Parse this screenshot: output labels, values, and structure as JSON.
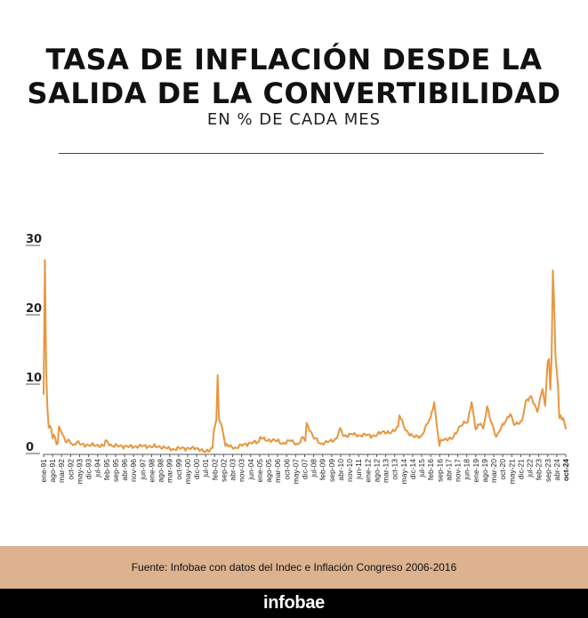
{
  "header": {
    "title_line1": "TASA DE INFLACIÓN DESDE LA",
    "title_line2": "SALIDA DE LA CONVERTIBILIDAD",
    "subtitle": "EN % DE CADA MES"
  },
  "colors": {
    "line": "#e8963f",
    "axis": "#555555",
    "footer_bg": "#dcb28f",
    "brand_bg": "#000000"
  },
  "chart_data": {
    "type": "line",
    "title": "TASA DE INFLACIÓN DESDE LA SALIDA DE LA CONVERTIBILIDAD",
    "subtitle": "EN % DE CADA MES",
    "xlabel": "",
    "ylabel": "",
    "ylim": [
      0,
      30
    ],
    "y_ticks": [
      0,
      10,
      20,
      30
    ],
    "grid": false,
    "x_tick_labels": [
      "ene-91",
      "ago-91",
      "mar-92",
      "oct-92",
      "may-93",
      "dic-93",
      "jul-94",
      "feb-95",
      "sep-95",
      "abr-96",
      "nov-96",
      "jun-97",
      "ene-98",
      "ago-98",
      "mar-99",
      "oct-99",
      "may-00",
      "dic-00",
      "jul-01",
      "feb-02",
      "sep-02",
      "abr-03",
      "nov-03",
      "jun-04",
      "ene-05",
      "ago-05",
      "mar-06",
      "oct-06",
      "may-07",
      "dic-07",
      "jul-08",
      "feb-09",
      "sep-09",
      "abr-10",
      "nov-10",
      "jun-11",
      "ene-12",
      "ago-12",
      "mar-13",
      "oct-13",
      "may-14",
      "dic-14",
      "jul-15",
      "feb-16",
      "sep-16",
      "abr-17",
      "nov-17",
      "jun-18",
      "ene-19",
      "ago-19",
      "mar-20",
      "oct-20",
      "may-21",
      "dic-21",
      "jul-22",
      "feb-23",
      "sep-23",
      "abr-24",
      "oct-24"
    ],
    "x_start": "1991-01",
    "x_end": "2024-10",
    "series": [
      {
        "name": "",
        "points": [
          [
            "1991-01",
            7.7
          ],
          [
            "1991-02",
            27.0
          ],
          [
            "1991-03",
            11.0
          ],
          [
            "1991-04",
            5.5
          ],
          [
            "1991-05",
            2.8
          ],
          [
            "1991-06",
            3.1
          ],
          [
            "1991-07",
            2.6
          ],
          [
            "1991-08",
            1.3
          ],
          [
            "1991-09",
            1.8
          ],
          [
            "1991-10",
            1.4
          ],
          [
            "1991-11",
            0.4
          ],
          [
            "1991-12",
            0.6
          ],
          [
            "1992-01",
            3.0
          ],
          [
            "1992-03",
            2.1
          ],
          [
            "1992-06",
            0.8
          ],
          [
            "1992-09",
            1.0
          ],
          [
            "1992-12",
            0.3
          ],
          [
            "1993-03",
            0.8
          ],
          [
            "1993-06",
            0.4
          ],
          [
            "1993-12",
            0.3
          ],
          [
            "1994-06",
            0.3
          ],
          [
            "1994-12",
            0.2
          ],
          [
            "1995-01",
            1.0
          ],
          [
            "1995-06",
            0.2
          ],
          [
            "1995-12",
            0.2
          ],
          [
            "1996-06",
            0.1
          ],
          [
            "1996-12",
            0.1
          ],
          [
            "1997-06",
            0.2
          ],
          [
            "1997-12",
            0.1
          ],
          [
            "1998-06",
            0.1
          ],
          [
            "1998-12",
            -0.1
          ],
          [
            "1999-06",
            -0.3
          ],
          [
            "1999-12",
            -0.1
          ],
          [
            "2000-06",
            -0.2
          ],
          [
            "2000-12",
            -0.1
          ],
          [
            "2001-06",
            -0.7
          ],
          [
            "2001-12",
            -0.1
          ],
          [
            "2002-01",
            2.3
          ],
          [
            "2002-02",
            3.1
          ],
          [
            "2002-03",
            4.0
          ],
          [
            "2002-04",
            10.4
          ],
          [
            "2002-05",
            4.0
          ],
          [
            "2002-06",
            3.6
          ],
          [
            "2002-07",
            3.2
          ],
          [
            "2002-08",
            2.3
          ],
          [
            "2002-09",
            1.3
          ],
          [
            "2002-10",
            0.2
          ],
          [
            "2002-11",
            0.5
          ],
          [
            "2002-12",
            0.2
          ],
          [
            "2003-06",
            -0.1
          ],
          [
            "2003-12",
            0.4
          ],
          [
            "2004-06",
            0.6
          ],
          [
            "2004-12",
            0.8
          ],
          [
            "2005-01",
            1.5
          ],
          [
            "2005-06",
            0.9
          ],
          [
            "2005-12",
            1.1
          ],
          [
            "2006-06",
            0.5
          ],
          [
            "2006-12",
            1.0
          ],
          [
            "2007-06",
            0.4
          ],
          [
            "2007-10",
            1.5
          ],
          [
            "2007-12",
            0.9
          ],
          [
            "2008-01",
            3.5
          ],
          [
            "2008-06",
            1.5
          ],
          [
            "2008-12",
            0.5
          ],
          [
            "2009-06",
            0.8
          ],
          [
            "2009-12",
            1.2
          ],
          [
            "2010-03",
            2.8
          ],
          [
            "2010-06",
            1.6
          ],
          [
            "2010-12",
            1.9
          ],
          [
            "2011-06",
            1.7
          ],
          [
            "2011-12",
            1.8
          ],
          [
            "2012-06",
            1.6
          ],
          [
            "2012-12",
            2.3
          ],
          [
            "2013-06",
            2.0
          ],
          [
            "2013-12",
            3.0
          ],
          [
            "2014-01",
            4.6
          ],
          [
            "2014-06",
            2.4
          ],
          [
            "2014-12",
            1.5
          ],
          [
            "2015-06",
            1.6
          ],
          [
            "2015-12",
            3.9
          ],
          [
            "2016-01",
            4.2
          ],
          [
            "2016-04",
            6.5
          ],
          [
            "2016-06",
            3.1
          ],
          [
            "2016-08",
            0.2
          ],
          [
            "2016-09",
            1.1
          ],
          [
            "2016-12",
            1.2
          ],
          [
            "2017-06",
            1.2
          ],
          [
            "2017-12",
            3.1
          ],
          [
            "2018-06",
            3.7
          ],
          [
            "2018-09",
            6.5
          ],
          [
            "2018-12",
            2.6
          ],
          [
            "2019-04",
            3.4
          ],
          [
            "2019-06",
            2.7
          ],
          [
            "2019-09",
            5.9
          ],
          [
            "2019-12",
            3.7
          ],
          [
            "2020-04",
            1.5
          ],
          [
            "2020-06",
            2.2
          ],
          [
            "2020-12",
            4.0
          ],
          [
            "2021-03",
            4.8
          ],
          [
            "2021-06",
            3.2
          ],
          [
            "2021-12",
            3.8
          ],
          [
            "2022-03",
            6.7
          ],
          [
            "2022-07",
            7.4
          ],
          [
            "2022-12",
            5.1
          ],
          [
            "2023-04",
            8.4
          ],
          [
            "2023-06",
            6.0
          ],
          [
            "2023-08",
            12.4
          ],
          [
            "2023-09",
            12.7
          ],
          [
            "2023-10",
            8.3
          ],
          [
            "2023-11",
            12.8
          ],
          [
            "2023-12",
            25.5
          ],
          [
            "2024-01",
            20.6
          ],
          [
            "2024-02",
            13.2
          ],
          [
            "2024-03",
            11.0
          ],
          [
            "2024-04",
            8.8
          ],
          [
            "2024-05",
            4.2
          ],
          [
            "2024-06",
            4.6
          ],
          [
            "2024-07",
            4.0
          ],
          [
            "2024-08",
            4.2
          ],
          [
            "2024-09",
            3.5
          ],
          [
            "2024-10",
            2.7
          ]
        ]
      }
    ]
  },
  "footer": {
    "source": "Fuente: Infobae con datos del Indec e Inflación Congreso 2006-2016",
    "brand": "infobae"
  }
}
